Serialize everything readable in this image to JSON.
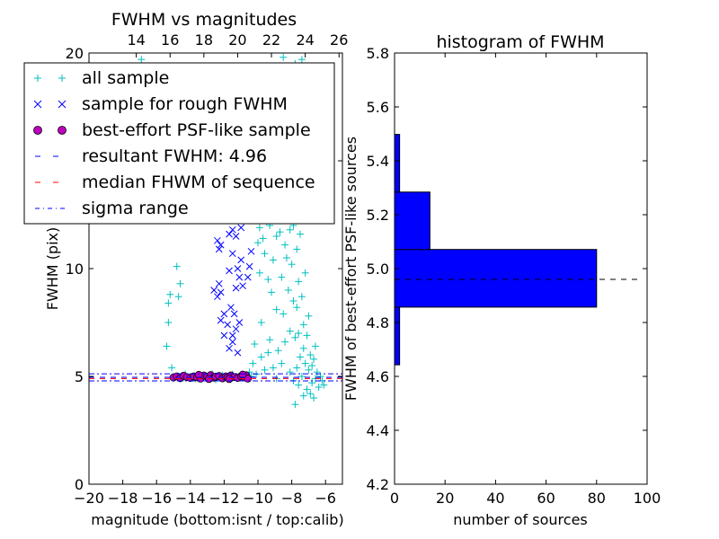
{
  "colors": {
    "all": "#00bfbf",
    "rough": "#0000ff",
    "best": "#bf00bf",
    "resultant": "#0000ff",
    "median": "#ff0000",
    "sigma": "#0000ff",
    "hist": "#0000ff"
  },
  "chart_data": [
    {
      "type": "scatter",
      "title": "FWHM vs magnitudes",
      "xlabel": "magnitude (bottom:isnt / top:calib)",
      "ylabel": "FWHM (pix)",
      "xlim": [
        -20,
        -5
      ],
      "ylim": [
        0,
        20
      ],
      "xticks": [
        -20,
        -18,
        -16,
        -14,
        -12,
        -10,
        -8,
        -6
      ],
      "xtick_labels": [
        "−20",
        "−18",
        "−16",
        "−14",
        "−12",
        "−10",
        "−8",
        "−6"
      ],
      "yticks": [
        0,
        5,
        10,
        15,
        20
      ],
      "ytick_labels": [
        "0",
        "5",
        "10",
        "",
        "20"
      ],
      "top_axis": {
        "offset": 31.2,
        "ticks": [
          14,
          16,
          18,
          20,
          22,
          24,
          26
        ],
        "tick_labels": [
          "14",
          "16",
          "18",
          "20",
          "22",
          "24",
          "26"
        ]
      },
      "legend": {
        "placement": "upper-left",
        "entries": [
          {
            "label": "all sample",
            "marker": "plus",
            "color_key": "all"
          },
          {
            "label": "sample for rough FWHM",
            "marker": "x",
            "color_key": "rough"
          },
          {
            "label": "best-effort PSF-like sample",
            "marker": "circle",
            "color_key": "best"
          },
          {
            "label": "resultant FWHM: 4.96",
            "marker": "dash",
            "color_key": "resultant"
          },
          {
            "label": "median FHWM of sequence",
            "marker": "dash",
            "color_key": "median"
          },
          {
            "label": "sigma range",
            "marker": "dashdot",
            "color_key": "sigma"
          }
        ]
      },
      "hlines": [
        {
          "y": 4.96,
          "style": "dashed",
          "color_key": "resultant"
        },
        {
          "y": 4.9,
          "style": "dashed",
          "color_key": "median"
        },
        {
          "y": 5.12,
          "style": "dashdot",
          "color_key": "sigma"
        },
        {
          "y": 4.79,
          "style": "dashdot",
          "color_key": "sigma"
        }
      ],
      "series": [
        {
          "name": "all sample",
          "points": [
            [
              -15.4,
              6.4
            ],
            [
              -15.3,
              7.5
            ],
            [
              -15.3,
              8.4
            ],
            [
              -15.2,
              8.8
            ],
            [
              -15.1,
              5.4
            ],
            [
              -15.0,
              4.9
            ],
            [
              -14.8,
              10.1
            ],
            [
              -14.7,
              8.7
            ],
            [
              -14.6,
              9.3
            ],
            [
              -14.5,
              5.0
            ],
            [
              -14.4,
              4.95
            ],
            [
              -14.3,
              5.1
            ],
            [
              -14.1,
              4.95
            ],
            [
              -13.9,
              5.0
            ],
            [
              -13.7,
              4.9
            ],
            [
              -13.5,
              5.05
            ],
            [
              -13.3,
              4.9
            ],
            [
              -13.1,
              4.95
            ],
            [
              -12.9,
              5.0
            ],
            [
              -12.7,
              5.1
            ],
            [
              -12.5,
              4.85
            ],
            [
              -12.3,
              5.0
            ],
            [
              -12.1,
              5.05
            ],
            [
              -11.9,
              5.0
            ],
            [
              -11.7,
              4.9
            ],
            [
              -11.5,
              5.1
            ],
            [
              -11.3,
              5.0
            ],
            [
              -11.1,
              4.95
            ],
            [
              -10.9,
              5.0
            ],
            [
              -10.7,
              5.05
            ],
            [
              -10.5,
              5.2
            ],
            [
              -10.4,
              5.0
            ],
            [
              -10.3,
              5.6
            ],
            [
              -10.2,
              6.5
            ],
            [
              -10.1,
              5.1
            ],
            [
              -10.0,
              11.2
            ],
            [
              -9.9,
              11.9
            ],
            [
              -9.9,
              9.8
            ],
            [
              -9.8,
              12.5
            ],
            [
              -9.8,
              7.5
            ],
            [
              -9.7,
              11.4
            ],
            [
              -9.6,
              13.8
            ],
            [
              -9.6,
              10.7
            ],
            [
              -9.5,
              12.2
            ],
            [
              -9.4,
              12.7
            ],
            [
              -9.4,
              9.5
            ],
            [
              -9.3,
              6.7
            ],
            [
              -9.3,
              12.0
            ],
            [
              -9.2,
              13.3
            ],
            [
              -9.2,
              8.9
            ],
            [
              -9.1,
              10.4
            ],
            [
              -9.0,
              14.8
            ],
            [
              -9.0,
              12.6
            ],
            [
              -8.9,
              11.5
            ],
            [
              -8.9,
              8.1
            ],
            [
              -8.8,
              13.7
            ],
            [
              -8.8,
              6.2
            ],
            [
              -8.7,
              11.7
            ],
            [
              -8.7,
              14.9
            ],
            [
              -8.6,
              9.6
            ],
            [
              -8.6,
              12.9
            ],
            [
              -8.5,
              13.6
            ],
            [
              -8.5,
              7.9
            ],
            [
              -8.4,
              11.1
            ],
            [
              -8.4,
              15.2
            ],
            [
              -8.3,
              10.5
            ],
            [
              -8.3,
              12.3
            ],
            [
              -8.2,
              14.2
            ],
            [
              -8.2,
              9.0
            ],
            [
              -8.1,
              11.8
            ],
            [
              -8.1,
              7.1
            ],
            [
              -8.0,
              13.1
            ],
            [
              -8.0,
              10.2
            ],
            [
              -7.9,
              8.5
            ],
            [
              -7.9,
              12.0
            ],
            [
              -7.8,
              19.5
            ],
            [
              -7.8,
              6.8
            ],
            [
              -7.7,
              10.9
            ],
            [
              -7.7,
              8.2
            ],
            [
              -7.6,
              9.4
            ],
            [
              -7.6,
              7.0
            ],
            [
              -7.5,
              11.6
            ],
            [
              -7.5,
              5.9
            ],
            [
              -7.4,
              8.7
            ],
            [
              -7.3,
              7.4
            ],
            [
              -7.3,
              6.3
            ],
            [
              -7.2,
              9.8
            ],
            [
              -7.2,
              5.6
            ],
            [
              -7.1,
              6.9
            ],
            [
              -7.0,
              5.3
            ],
            [
              -7.0,
              7.8
            ],
            [
              -6.9,
              6.0
            ],
            [
              -6.8,
              5.5
            ],
            [
              -6.8,
              4.7
            ],
            [
              -6.7,
              5.8
            ],
            [
              -6.6,
              4.9
            ],
            [
              -6.6,
              6.4
            ],
            [
              -6.5,
              5.2
            ],
            [
              -6.4,
              4.5
            ],
            [
              -6.3,
              5.0
            ],
            [
              -6.2,
              4.8
            ],
            [
              -6.1,
              4.6
            ],
            [
              -8.6,
              5.6
            ],
            [
              -8.4,
              6.6
            ],
            [
              -8.1,
              5.2
            ],
            [
              -7.9,
              4.8
            ],
            [
              -7.7,
              5.4
            ],
            [
              -7.6,
              4.6
            ],
            [
              -7.4,
              5.0
            ],
            [
              -7.1,
              4.4
            ],
            [
              -6.9,
              4.2
            ],
            [
              -7.8,
              3.7
            ],
            [
              -8.9,
              4.9
            ],
            [
              -9.1,
              5.4
            ],
            [
              -9.4,
              6.1
            ],
            [
              -9.6,
              5.3
            ],
            [
              -9.8,
              5.9
            ],
            [
              -8.5,
              19.8
            ],
            [
              -7.4,
              19.7
            ],
            [
              -16.9,
              19.7
            ],
            [
              -6.7,
              4.0
            ],
            [
              -7.3,
              4.1
            ]
          ]
        },
        {
          "name": "sample for rough FWHM",
          "points": [
            [
              -12.4,
              11.3
            ],
            [
              -12.3,
              10.9
            ],
            [
              -12.2,
              11.1
            ],
            [
              -11.7,
              11.6
            ],
            [
              -11.5,
              11.8
            ],
            [
              -11.3,
              11.5
            ],
            [
              -11.0,
              11.9
            ],
            [
              -11.5,
              10.7
            ],
            [
              -11.7,
              9.9
            ],
            [
              -11.2,
              10.0
            ],
            [
              -11.0,
              10.4
            ],
            [
              -12.6,
              9.0
            ],
            [
              -12.4,
              8.7
            ],
            [
              -12.3,
              9.3
            ],
            [
              -12.2,
              8.9
            ],
            [
              -11.3,
              9.1
            ],
            [
              -11.1,
              9.6
            ],
            [
              -10.9,
              9.2
            ],
            [
              -12.2,
              7.6
            ],
            [
              -12.0,
              7.9
            ],
            [
              -11.8,
              7.4
            ],
            [
              -11.5,
              6.9
            ],
            [
              -11.3,
              7.2
            ],
            [
              -11.1,
              7.5
            ],
            [
              -11.7,
              6.3
            ],
            [
              -11.5,
              6.6
            ],
            [
              -11.2,
              6.1
            ],
            [
              -12.0,
              6.9
            ],
            [
              -11.6,
              8.2
            ],
            [
              -11.4,
              7.9
            ],
            [
              -10.6,
              9.6
            ],
            [
              -10.5,
              10.1
            ],
            [
              -10.4,
              10.8
            ]
          ]
        },
        {
          "name": "best-effort PSF-like sample",
          "points": [
            [
              -15.0,
              4.95
            ],
            [
              -14.8,
              5.0
            ],
            [
              -14.6,
              4.92
            ],
            [
              -14.4,
              5.03
            ],
            [
              -14.2,
              4.97
            ],
            [
              -14.0,
              4.93
            ],
            [
              -13.8,
              5.0
            ],
            [
              -13.6,
              4.96
            ],
            [
              -13.4,
              4.9
            ],
            [
              -13.2,
              5.04
            ],
            [
              -13.0,
              4.98
            ],
            [
              -12.8,
              5.06
            ],
            [
              -12.6,
              4.94
            ],
            [
              -12.5,
              4.99
            ],
            [
              -12.3,
              5.02
            ],
            [
              -12.1,
              4.91
            ],
            [
              -11.9,
              5.0
            ],
            [
              -11.8,
              4.95
            ],
            [
              -11.6,
              5.04
            ],
            [
              -11.4,
              4.97
            ],
            [
              -11.2,
              4.93
            ],
            [
              -11.0,
              5.01
            ],
            [
              -10.8,
              4.96
            ],
            [
              -10.7,
              5.05
            ],
            [
              -10.6,
              4.9
            ],
            [
              -12.9,
              4.88
            ],
            [
              -13.5,
              5.07
            ],
            [
              -11.7,
              4.88
            ],
            [
              -10.9,
              5.08
            ]
          ]
        }
      ]
    },
    {
      "type": "bar",
      "orientation": "horizontal",
      "title": "histogram of FWHM",
      "xlabel": "number of sources",
      "ylabel": "FWHM of best-effort PSF-like sources",
      "xlim": [
        0,
        100
      ],
      "ylim": [
        4.2,
        5.8
      ],
      "xticks": [
        0,
        20,
        40,
        60,
        80,
        100
      ],
      "yticks": [
        4.2,
        4.4,
        4.6,
        4.8,
        5.0,
        5.2,
        5.4,
        5.6,
        5.8
      ],
      "bins": [
        {
          "lo": 4.643,
          "hi": 4.857,
          "count": 2
        },
        {
          "lo": 4.857,
          "hi": 5.071,
          "count": 80
        },
        {
          "lo": 5.071,
          "hi": 5.284,
          "count": 14
        },
        {
          "lo": 5.284,
          "hi": 5.498,
          "count": 2
        }
      ],
      "hline": {
        "y": 4.96,
        "style": "dashed",
        "color": "#000000"
      }
    }
  ]
}
